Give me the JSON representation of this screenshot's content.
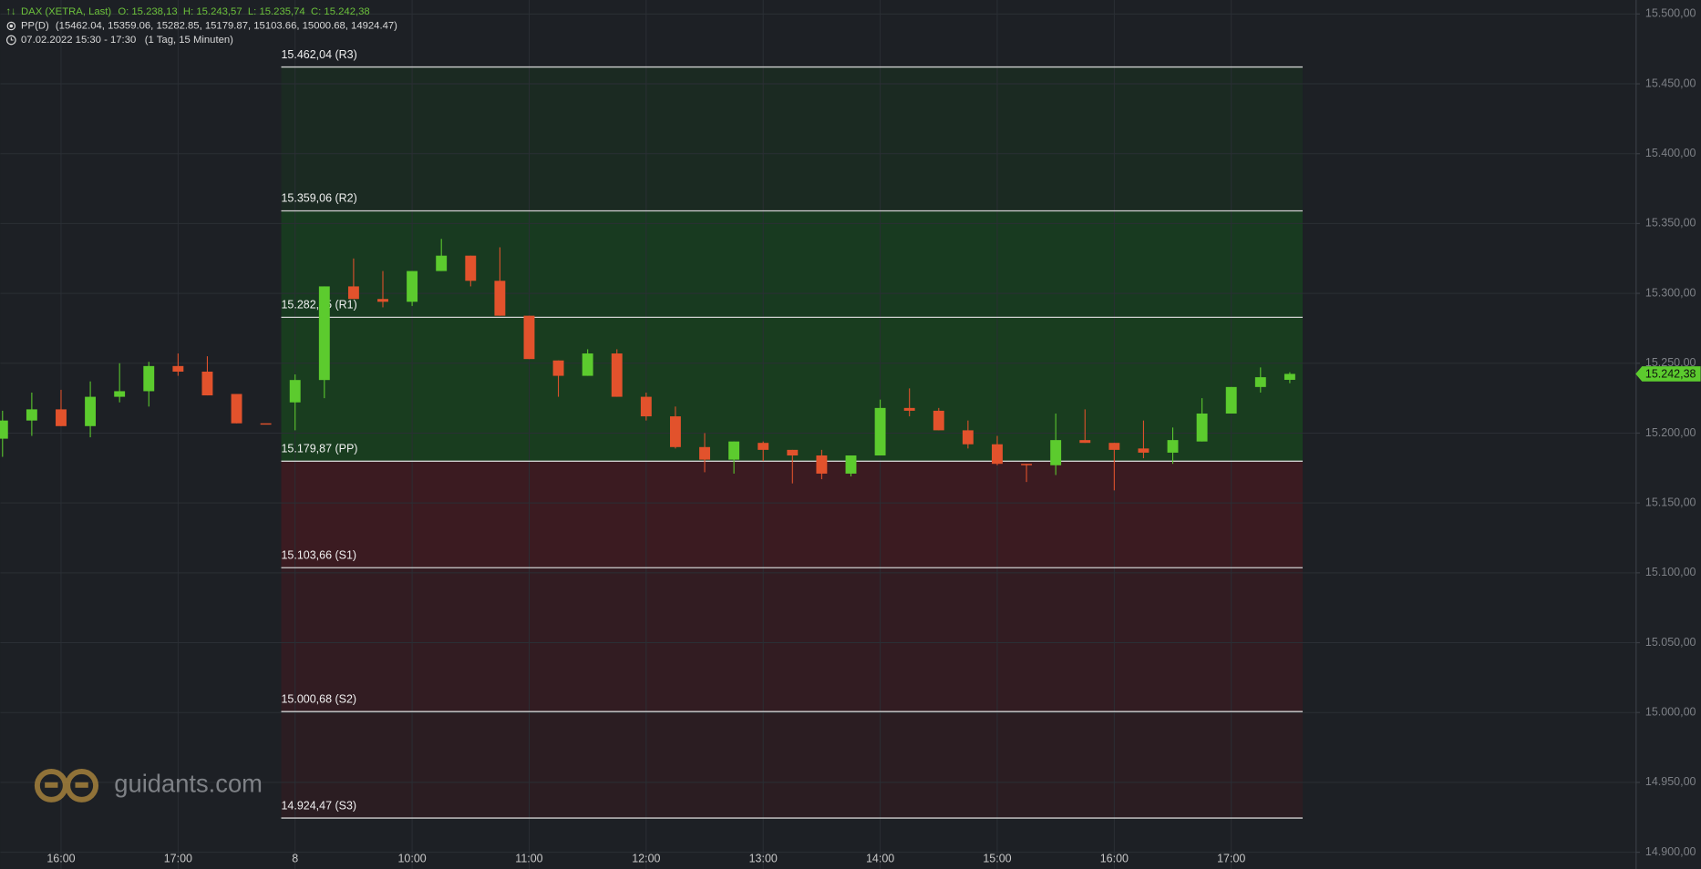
{
  "chart_data": {
    "type": "candlestick",
    "title": "DAX (XETRA, Last)",
    "ohlc_text": "O: 15.238,13  H: 15.243,57  L: 15.235,74  C: 15.242,38",
    "indicator": "PP(D)",
    "indicator_values": "(15462.04, 15359.06, 15282.85, 15179.87, 15103.66, 15000.68, 14924.47)",
    "period": "07.02.2022 15:30 - 17:30",
    "interval": "(1 Tag, 15 Minuten)",
    "watermark": "guidants.com",
    "categories": [
      null,
      null,
      "16:00",
      null,
      null,
      null,
      "17:00",
      null,
      null,
      null,
      "8",
      null,
      null,
      null,
      "10:00",
      null,
      null,
      null,
      "11:00",
      null,
      null,
      null,
      "12:00",
      null,
      null,
      null,
      "13:00",
      null,
      null,
      null,
      "14:00",
      null,
      null,
      null,
      "15:00",
      null,
      null,
      null,
      "16:00",
      null,
      null,
      null,
      "17:00",
      null,
      null
    ],
    "open": [
      15196,
      15209,
      15217,
      15205,
      15226,
      15230,
      15248,
      15244,
      15228,
      15207,
      15222,
      15238,
      15305,
      15296,
      15294,
      15316,
      15327,
      15309,
      15284,
      15252,
      15241,
      15257,
      15226,
      15212,
      15190,
      15181,
      15193,
      15188,
      15184,
      15171,
      15184,
      15218,
      15216,
      15202,
      15192,
      15178,
      15177,
      15195,
      15193,
      15189,
      15186,
      15194,
      15214,
      15233,
      15238.13
    ],
    "high": [
      15216,
      15229,
      15231,
      15237,
      15250,
      15251,
      15257,
      15255,
      15228,
      15207,
      15242,
      15305,
      15325,
      15316,
      15316,
      15339,
      15327,
      15333,
      15284,
      15252,
      15260,
      15260,
      15229,
      15219,
      15200,
      15194,
      15194,
      15188,
      15188,
      15184,
      15224,
      15232,
      15218,
      15209,
      15198,
      15178,
      15214,
      15217,
      15193,
      15209,
      15204,
      15225,
      15233,
      15247,
      15243.57
    ],
    "low": [
      15183,
      15198,
      15205,
      15197,
      15222,
      15219,
      15241,
      15227,
      15207,
      15207,
      15202,
      15225,
      15296,
      15290,
      15291,
      15316,
      15305,
      15284,
      15253,
      15226,
      15241,
      15226,
      15209,
      15189,
      15172,
      15171,
      15180,
      15164,
      15167,
      15169,
      15184,
      15212,
      15202,
      15189,
      15177,
      15165,
      15170,
      15193,
      15159,
      15182,
      15178,
      15194,
      15214,
      15229,
      15235.74
    ],
    "close": [
      15209,
      15217,
      15205,
      15226,
      15230,
      15248,
      15244,
      15227,
      15207,
      15207,
      15238,
      15305,
      15296,
      15294,
      15316,
      15327,
      15309,
      15284,
      15253,
      15241,
      15257,
      15226,
      15212,
      15190,
      15181,
      15194,
      15188,
      15184,
      15171,
      15184,
      15218,
      15216,
      15202,
      15192,
      15178,
      15177,
      15195,
      15193,
      15188,
      15186,
      15195,
      15214,
      15233,
      15240,
      15242.38
    ],
    "up_color": "#5ccb2e",
    "down_color": "#e2522c",
    "last_price_label": "15.242,38",
    "ylim": [
      14888,
      15510
    ],
    "yticks": [
      {
        "value": 15500,
        "label": "15.500,00"
      },
      {
        "value": 15450,
        "label": "15.450,00"
      },
      {
        "value": 15400,
        "label": "15.400,00"
      },
      {
        "value": 15350,
        "label": "15.350,00"
      },
      {
        "value": 15300,
        "label": "15.300,00"
      },
      {
        "value": 15250,
        "label": "15.250,00"
      },
      {
        "value": 15200,
        "label": "15.200,00"
      },
      {
        "value": 15150,
        "label": "15.150,00"
      },
      {
        "value": 15100,
        "label": "15.100,00"
      },
      {
        "value": 15050,
        "label": "15.050,00"
      },
      {
        "value": 15000,
        "label": "15.000,00"
      },
      {
        "value": 14950,
        "label": "14.950,00"
      },
      {
        "value": 14900,
        "label": "14.900,00"
      }
    ],
    "grid": true,
    "pivot_levels": [
      {
        "value": 15462.04,
        "label": "15.462,04 (R3)"
      },
      {
        "value": 15359.06,
        "label": "15.359,06 (R2)"
      },
      {
        "value": 15282.85,
        "label": "15.282,85 (R1)"
      },
      {
        "value": 15179.87,
        "label": "15.179,87 (PP)"
      },
      {
        "value": 15103.66,
        "label": "15.103,66 (S1)"
      },
      {
        "value": 15000.68,
        "label": "15.000,68 (S2)"
      },
      {
        "value": 14924.47,
        "label": "14.924,47 (S3)"
      }
    ],
    "zone_colors": [
      "#1b2a22",
      "#183a20",
      "#193d1f",
      "#3b1b21",
      "#321c22",
      "#2b1d22"
    ]
  }
}
